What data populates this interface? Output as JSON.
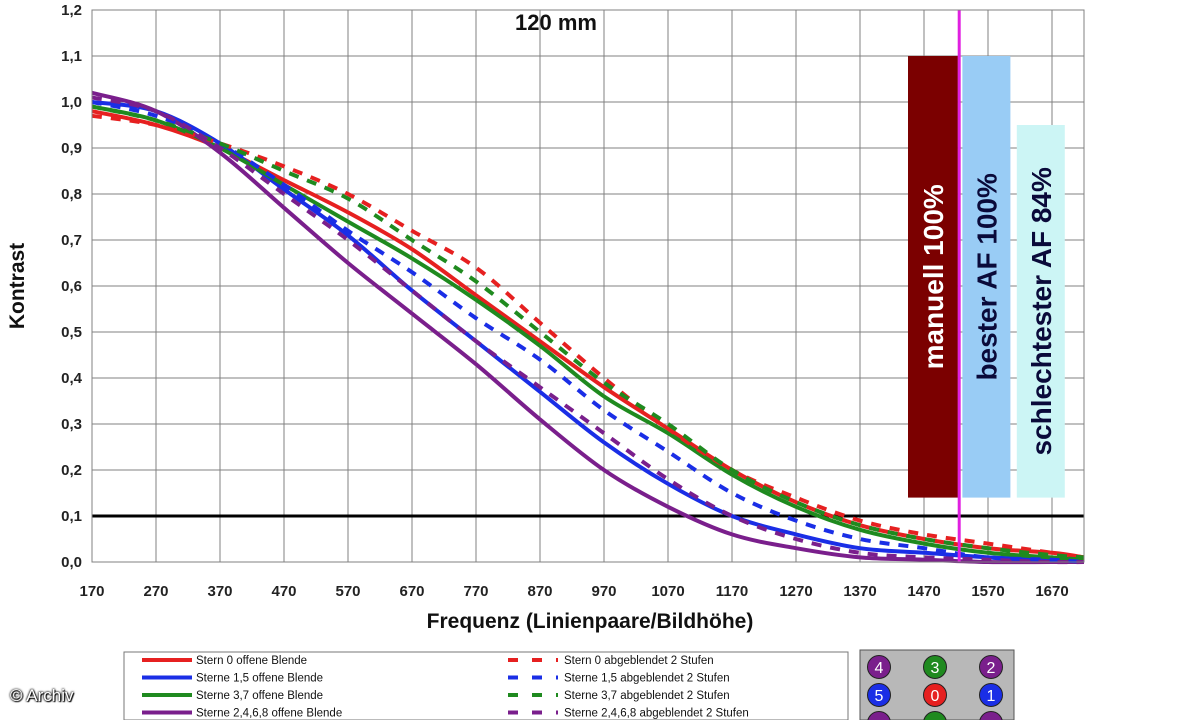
{
  "colors": {
    "stern0": "#e62020",
    "sterne15": "#1a2ee6",
    "sterne37": "#1f8a1f",
    "sterne2468": "#7a1f8c",
    "threshold": "#000000",
    "marker": "#e020e0",
    "bar_manuell": "#7b0000",
    "bar_bester": "#99ccf5",
    "bar_schlechtester": "#ccf5f5"
  },
  "chart_data": {
    "type": "line",
    "title": "120 mm",
    "xlabel": "Frequenz (Linienpaare/Bildhöhe)",
    "ylabel": "Kontrast",
    "xlim": [
      170,
      1720
    ],
    "ylim": [
      0.0,
      1.2
    ],
    "x_ticks": [
      "170",
      "270",
      "370",
      "470",
      "570",
      "670",
      "770",
      "870",
      "970",
      "1070",
      "1170",
      "1270",
      "1370",
      "1470",
      "1570",
      "1670"
    ],
    "y_ticks": [
      "0,0",
      "0,1",
      "0,2",
      "0,3",
      "0,4",
      "0,5",
      "0,6",
      "0,7",
      "0,8",
      "0,9",
      "1,0",
      "1,1",
      "1,2"
    ],
    "x": [
      170,
      270,
      370,
      470,
      570,
      670,
      770,
      870,
      970,
      1070,
      1170,
      1270,
      1370,
      1470,
      1570,
      1670,
      1720
    ],
    "series": [
      {
        "name": "Stern 0 offene Blende",
        "color_key": "stern0",
        "dashed": false,
        "values": [
          0.98,
          0.95,
          0.9,
          0.83,
          0.76,
          0.68,
          0.58,
          0.48,
          0.38,
          0.29,
          0.2,
          0.13,
          0.08,
          0.05,
          0.03,
          0.02,
          0.01
        ]
      },
      {
        "name": "Sterne 1,5 offene Blende",
        "color_key": "sterne15",
        "dashed": false,
        "values": [
          1.0,
          0.98,
          0.91,
          0.81,
          0.71,
          0.59,
          0.48,
          0.37,
          0.26,
          0.17,
          0.1,
          0.06,
          0.03,
          0.02,
          0.01,
          0.005,
          0.0
        ]
      },
      {
        "name": "Sterne 3,7 offene Blende",
        "color_key": "sterne37",
        "dashed": false,
        "values": [
          0.99,
          0.96,
          0.9,
          0.82,
          0.74,
          0.66,
          0.57,
          0.47,
          0.36,
          0.28,
          0.19,
          0.12,
          0.07,
          0.04,
          0.02,
          0.01,
          0.005
        ]
      },
      {
        "name": "Sterne 2,4,6,8 offene Blende",
        "color_key": "sterne2468",
        "dashed": false,
        "values": [
          1.02,
          0.98,
          0.89,
          0.77,
          0.65,
          0.54,
          0.43,
          0.31,
          0.2,
          0.12,
          0.06,
          0.03,
          0.01,
          0.005,
          0.0,
          0.0,
          0.0
        ]
      },
      {
        "name": "Stern 0 abgeblendet 2 Stufen",
        "color_key": "stern0",
        "dashed": true,
        "values": [
          0.97,
          0.95,
          0.91,
          0.86,
          0.8,
          0.72,
          0.64,
          0.52,
          0.4,
          0.29,
          0.2,
          0.14,
          0.09,
          0.06,
          0.04,
          0.02,
          0.01
        ]
      },
      {
        "name": "Sterne 1,5 abgeblendet 2 Stufen",
        "color_key": "sterne15",
        "dashed": true,
        "values": [
          1.0,
          0.97,
          0.91,
          0.82,
          0.72,
          0.63,
          0.53,
          0.44,
          0.33,
          0.24,
          0.15,
          0.09,
          0.05,
          0.03,
          0.01,
          0.005,
          0.0
        ]
      },
      {
        "name": "Sterne 3,7 abgeblendet 2 Stufen",
        "color_key": "sterne37",
        "dashed": true,
        "values": [
          0.99,
          0.96,
          0.91,
          0.85,
          0.79,
          0.7,
          0.61,
          0.5,
          0.39,
          0.3,
          0.2,
          0.13,
          0.08,
          0.05,
          0.03,
          0.015,
          0.01
        ]
      },
      {
        "name": "Sterne 2,4,6,8 abgeblendet 2 Stufen",
        "color_key": "sterne2468",
        "dashed": true,
        "values": [
          1.01,
          0.98,
          0.9,
          0.8,
          0.7,
          0.59,
          0.48,
          0.38,
          0.28,
          0.18,
          0.1,
          0.05,
          0.02,
          0.01,
          0.005,
          0.0,
          0.0
        ]
      }
    ],
    "threshold_line": {
      "y": 0.1
    },
    "marker_line": {
      "x": 1525
    },
    "bars": [
      {
        "label": "manuell 100%",
        "color_key": "bar_manuell",
        "text_color": "#ffffff",
        "x_from": 1445,
        "x_to": 1523,
        "y_from": 0.14,
        "y_to": 1.1
      },
      {
        "label": "bester AF 100%",
        "color_key": "bar_bester",
        "text_color": "#0a0a3a",
        "x_from": 1530,
        "x_to": 1605,
        "y_from": 0.14,
        "y_to": 1.1
      },
      {
        "label": "schlechtester AF 84%",
        "color_key": "bar_schlechtester",
        "text_color": "#0a0a3a",
        "x_from": 1615,
        "x_to": 1690,
        "y_from": 0.14,
        "y_to": 0.95
      }
    ]
  },
  "star_grid": [
    {
      "label": "4",
      "color_key": "sterne2468"
    },
    {
      "label": "3",
      "color_key": "sterne37"
    },
    {
      "label": "2",
      "color_key": "sterne2468"
    },
    {
      "label": "5",
      "color_key": "sterne15"
    },
    {
      "label": "0",
      "color_key": "stern0"
    },
    {
      "label": "1",
      "color_key": "sterne15"
    }
  ],
  "footer": {
    "copyright": "© Archiv"
  }
}
